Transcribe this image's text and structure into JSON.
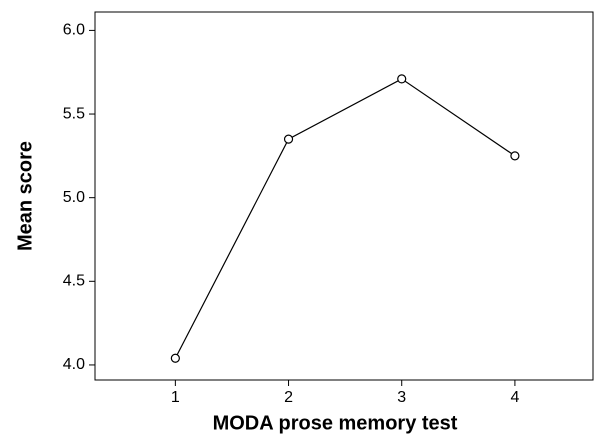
{
  "chart_data": {
    "type": "line",
    "xlabel": "MODA prose memory test",
    "ylabel": "Mean score",
    "x": [
      1,
      2,
      3,
      4
    ],
    "series": [
      {
        "name": null,
        "color": "#000000",
        "values": [
          4.04,
          5.35,
          5.71,
          5.25
        ]
      }
    ],
    "xlim": [
      0.29,
      4.69
    ],
    "xticks": [
      1,
      2,
      3,
      4
    ],
    "ylim": [
      3.91,
      6.11
    ],
    "yticks": [
      {
        "value": 4,
        "label": "4.0"
      },
      {
        "value": 4.5,
        "label": "4.5"
      },
      {
        "value": 5,
        "label": "5.0"
      },
      {
        "value": 5.5,
        "label": "5.5"
      },
      {
        "value": 6,
        "label": "6.0"
      }
    ],
    "grid": false,
    "marker": "circle"
  }
}
